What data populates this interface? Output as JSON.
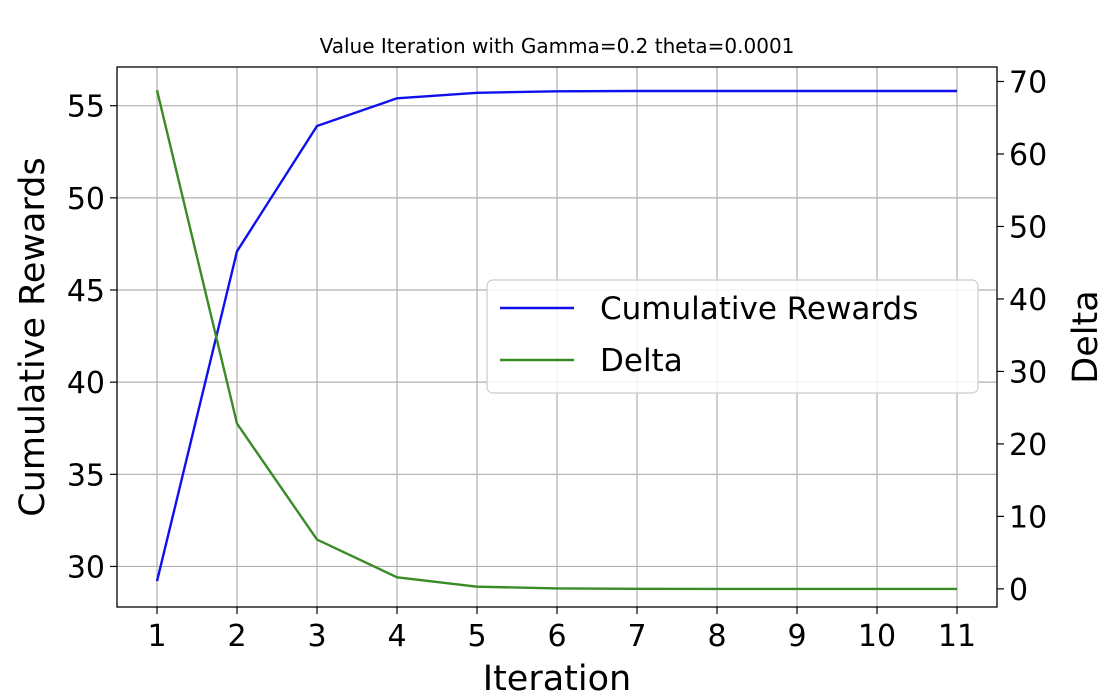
{
  "chart_data": {
    "type": "line",
    "title": "Value Iteration with Gamma=0.2 theta=0.0001",
    "xlabel": "Iteration",
    "ylabel_left": "Cumulative Rewards",
    "ylabel_right": "Delta",
    "x": [
      1,
      2,
      3,
      4,
      5,
      6,
      7,
      8,
      9,
      10,
      11
    ],
    "xlim": [
      0.5,
      11.5
    ],
    "ylim_left": [
      27.8,
      57.1
    ],
    "ylim_right": [
      -2.5,
      72.0
    ],
    "yticks_left": [
      30,
      35,
      40,
      45,
      50,
      55
    ],
    "yticks_right": [
      0,
      10,
      20,
      30,
      40,
      50,
      60,
      70
    ],
    "grid": true,
    "legend_position": "center-right",
    "series": [
      {
        "name": "Cumulative Rewards",
        "axis": "left",
        "color": "#1010ee",
        "values": [
          29.2,
          47.1,
          53.9,
          55.4,
          55.7,
          55.78,
          55.8,
          55.8,
          55.8,
          55.8,
          55.8
        ]
      },
      {
        "name": "Delta",
        "axis": "right",
        "color": "#3a8a26",
        "values": [
          68.8,
          22.8,
          6.8,
          1.6,
          0.3,
          0.06,
          0.01,
          0.0,
          0.0,
          0.0,
          0.0
        ]
      }
    ]
  }
}
